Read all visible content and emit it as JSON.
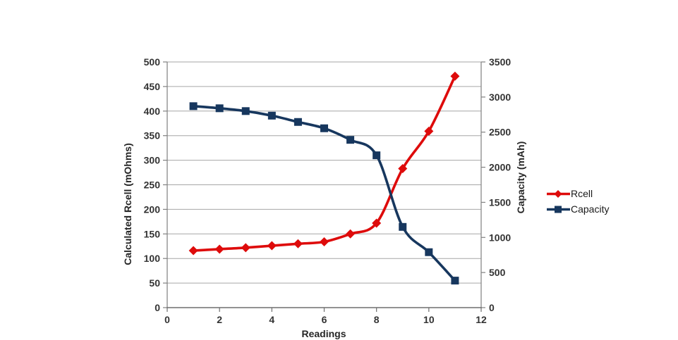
{
  "chart_data": {
    "type": "line",
    "title": "",
    "xlabel": "Readings",
    "x": [
      1,
      2,
      3,
      4,
      5,
      6,
      7,
      8,
      9,
      10,
      11
    ],
    "x_axis": {
      "min": 0,
      "max": 12,
      "ticks": [
        0,
        2,
        4,
        6,
        8,
        10,
        12
      ]
    },
    "left_axis": {
      "label": "Calculated Rcell (mOhms)",
      "min": 0,
      "max": 500,
      "ticks": [
        500,
        450,
        400,
        350,
        300,
        250,
        200,
        150,
        100,
        50,
        0
      ]
    },
    "right_axis": {
      "label": "Capacity (mAh)",
      "min": 0,
      "max": 3500,
      "ticks": [
        3500,
        3000,
        2500,
        2000,
        1500,
        1000,
        500,
        0
      ]
    },
    "series": [
      {
        "name": "Rcell",
        "axis": "left",
        "color": "#de0b0b",
        "marker": "diamond",
        "values": [
          116,
          119,
          122,
          126,
          130,
          134,
          150,
          172,
          283,
          359,
          471
        ]
      },
      {
        "name": "Capacity",
        "axis": "right",
        "color": "#17375e",
        "marker": "square",
        "values": [
          2870,
          2840,
          2800,
          2735,
          2645,
          2555,
          2390,
          2170,
          1150,
          790,
          385
        ]
      }
    ],
    "grid": true,
    "smoothed_lines": true,
    "legend_position": "right",
    "background": "#ffffff",
    "gridline_color": "#a6a6a6",
    "axis_line_color": "#808080",
    "tick_label_color": "#333333"
  }
}
